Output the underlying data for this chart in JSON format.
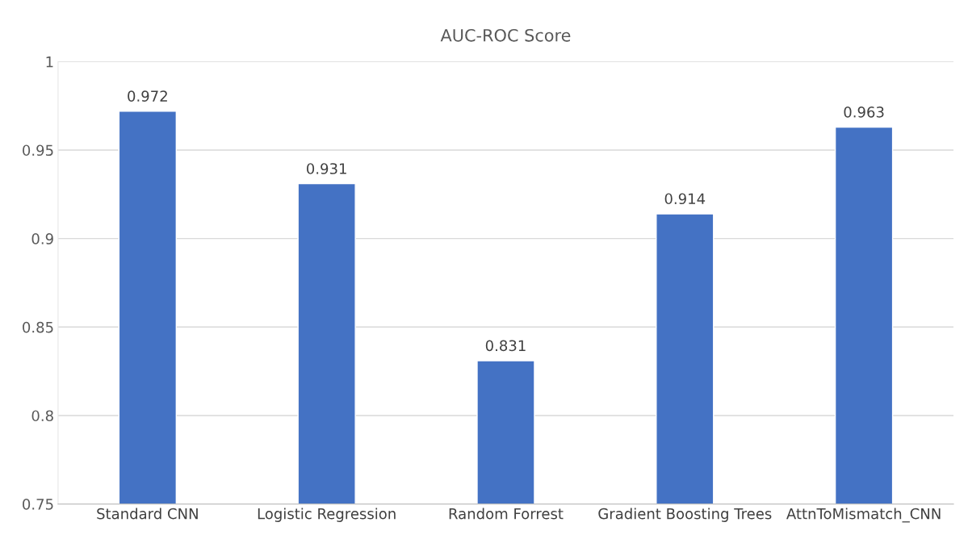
{
  "chart_data": {
    "type": "bar",
    "title": "AUC-ROC Score",
    "categories": [
      "Standard CNN",
      "Logistic Regression",
      "Random Forrest",
      "Gradient Boosting Trees",
      "AttnToMismatch_CNN"
    ],
    "values": [
      0.972,
      0.931,
      0.831,
      0.914,
      0.963
    ],
    "color": "#4472c4",
    "ylim": [
      0.75,
      1
    ],
    "yticks": [
      0.75,
      0.8,
      0.85,
      0.9,
      0.95,
      1
    ],
    "grid": "y",
    "data_labels": true,
    "legend": false
  }
}
